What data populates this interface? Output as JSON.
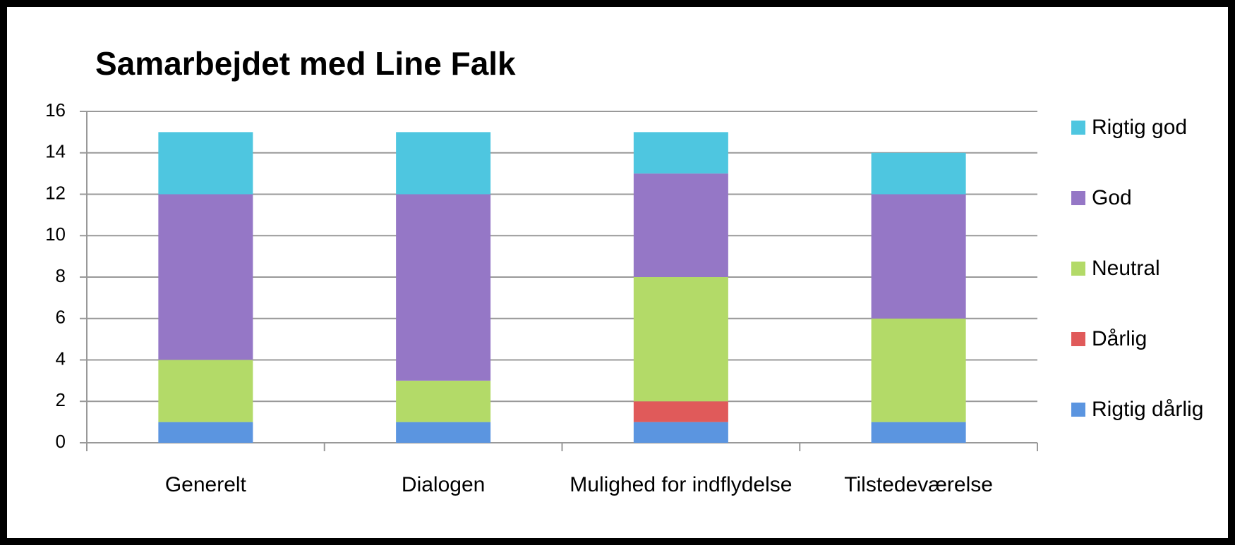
{
  "chart_data": {
    "type": "stacked_bar",
    "title": "Samarbejdet med Line Falk",
    "categories": [
      "Generelt",
      "Dialogen",
      "Mulighed for indflydelse",
      "Tilstedeværelse"
    ],
    "series": [
      {
        "name": "Rigtig dårlig",
        "color": "#5b95e0",
        "values": [
          1,
          1,
          1,
          1
        ]
      },
      {
        "name": "Dårlig",
        "color": "#e05a5a",
        "values": [
          0,
          0,
          1,
          0
        ]
      },
      {
        "name": "Neutral",
        "color": "#b3da68",
        "values": [
          3,
          2,
          6,
          5
        ]
      },
      {
        "name": "God",
        "color": "#9577c6",
        "values": [
          8,
          9,
          5,
          6
        ]
      },
      {
        "name": "Rigtig god",
        "color": "#4ec6e0",
        "values": [
          3,
          3,
          2,
          2
        ]
      }
    ],
    "ylim": [
      0,
      16
    ],
    "yticks": [
      0,
      2,
      4,
      6,
      8,
      10,
      12,
      14,
      16
    ],
    "grid": true,
    "legend": "right"
  }
}
